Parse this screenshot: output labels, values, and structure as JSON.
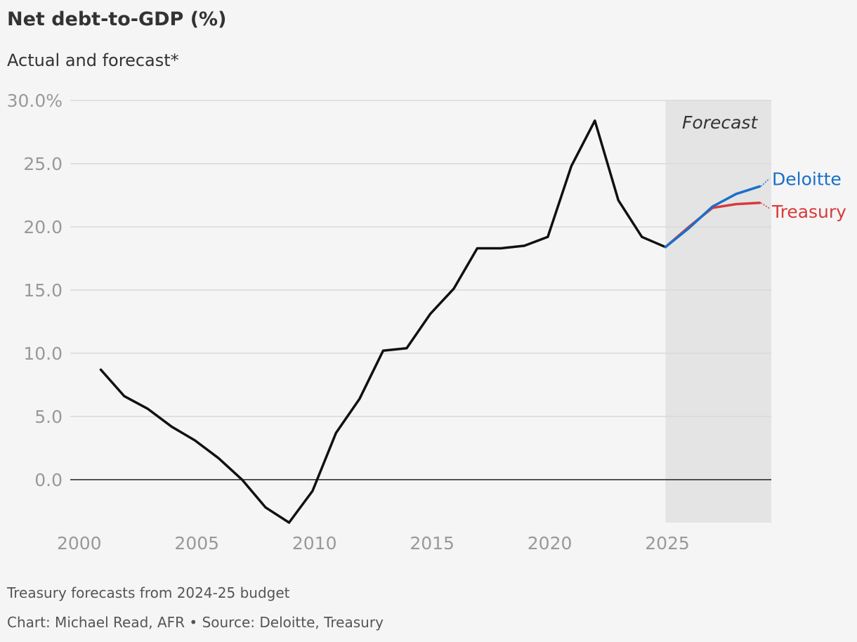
{
  "header": {
    "title": "Net debt-to-GDP (%)",
    "subtitle": "Actual and forecast*"
  },
  "footer": {
    "note": "Treasury forecasts from 2024-25 budget",
    "credit": "Chart: Michael Read, AFR • Source: Deloitte, Treasury"
  },
  "colors": {
    "actual": "#111111",
    "deloitte": "#1a6fc9",
    "treasury": "#d93a3a",
    "forecast_band": "#e4e4e4",
    "grid": "#d9d9d9",
    "tick_text": "#999999"
  },
  "chart_data": {
    "type": "line",
    "title": "Net debt-to-GDP (%)",
    "subtitle": "Actual and forecast*",
    "xlim": [
      1999.2,
      2029
    ],
    "ylim": [
      -3.4,
      30
    ],
    "x_ticks": [
      2000,
      2005,
      2010,
      2015,
      2020,
      2025
    ],
    "y_ticks": [
      {
        "value": 30,
        "label": "30.0%"
      },
      {
        "value": 25,
        "label": "25.0"
      },
      {
        "value": 20,
        "label": "20.0"
      },
      {
        "value": 15,
        "label": "15.0"
      },
      {
        "value": 10,
        "label": "10.0"
      },
      {
        "value": 5,
        "label": "5.0"
      },
      {
        "value": 0,
        "label": "0.0"
      }
    ],
    "grid": true,
    "forecast_region": {
      "start": 2024.5,
      "end": 2029,
      "label": "Forecast"
    },
    "series": [
      {
        "name": "",
        "role": "actual",
        "x": [
          2000.5,
          2001.5,
          2002.5,
          2003.5,
          2004.5,
          2005.5,
          2006.5,
          2007.5,
          2008.5,
          2009.5,
          2010.5,
          2011.5,
          2012.5,
          2013.5,
          2014.5,
          2015.5,
          2016.5,
          2017.5,
          2018.5,
          2019.5,
          2020.5,
          2021.5,
          2022.5,
          2023.5,
          2024.5
        ],
        "y": [
          8.7,
          6.6,
          5.6,
          4.2,
          3.1,
          1.7,
          0.0,
          -2.2,
          -3.4,
          -0.9,
          3.7,
          6.4,
          10.2,
          10.4,
          13.1,
          15.1,
          18.3,
          18.3,
          18.5,
          19.2,
          24.8,
          28.4,
          22.1,
          19.2,
          18.4
        ]
      },
      {
        "name": "Deloitte",
        "role": "deloitte",
        "x": [
          2024.5,
          2025.5,
          2026.5,
          2027.5,
          2028.5
        ],
        "y": [
          18.4,
          19.9,
          21.6,
          22.6,
          23.2
        ]
      },
      {
        "name": "Treasury",
        "role": "treasury",
        "x": [
          2024.5,
          2025.5,
          2026.5,
          2027.5,
          2028.5
        ],
        "y": [
          18.4,
          20.0,
          21.5,
          21.8,
          21.9
        ]
      }
    ]
  }
}
